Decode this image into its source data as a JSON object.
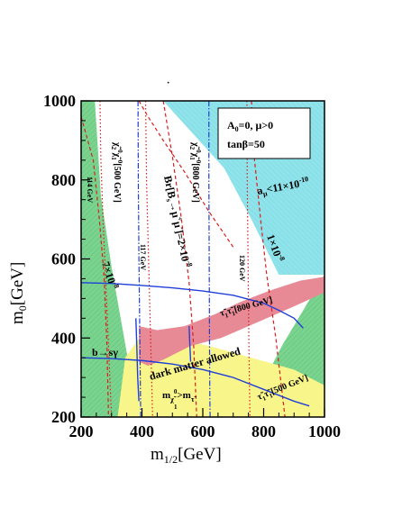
{
  "chart_data": {
    "type": "area",
    "xlabel": "m",
    "xlabel_sub": "1/2",
    "xlabel_unit": "[GeV]",
    "ylabel": "m",
    "ylabel_sub": "0",
    "ylabel_unit": "[GeV]",
    "xlim": [
      200,
      1000
    ],
    "ylim": [
      200,
      1000
    ],
    "xticks": [
      200,
      400,
      600,
      800,
      1000
    ],
    "yticks": [
      200,
      400,
      600,
      800,
      1000
    ],
    "legend_box": {
      "line1": "A",
      "line1_sub": "0",
      "line1_rest": "=0,  μ>0",
      "line2": "tanβ=50"
    },
    "annotations": {
      "amu": "a",
      "amu_sub": "μ",
      "amu_rest": "<11×10",
      "amu_sup": "-10",
      "one_e8": "1×10",
      "one_e8_sup": "-8",
      "seven_e8": "7×10",
      "seven_e8_sup": "-8",
      "br": "Br[B",
      "br_sub": "s",
      "br_rest": "→μ",
      "br_sup1": "+",
      "br_mid": "μ",
      "br_sup2": "-",
      "br_end": "]=2×10",
      "br_sup3": "-8",
      "bsg": "b→sγ",
      "dm": "dark matter allowed",
      "mchi": "m",
      "mchi_sub": "χ̃",
      "mchi_sub2": "1",
      "mchi_sup": "0",
      "mchi_rest": ">m",
      "mchi_sub3": "τ̃",
      "mchi_sub4": "1",
      "chi500": "χ̃",
      "chi500_rest": "[500 GeV]",
      "chi800": "χ̃",
      "chi800_rest": "[800 GeV]",
      "stau800": "τ̃",
      "stau800_rest": "τ̃",
      "stau800_end": "[800 GeV]",
      "stau500": "τ̃",
      "stau500_rest": "τ̃",
      "stau500_end": "[500 GeV]",
      "h114": "114 GeV",
      "h117": "117 GeV",
      "h120": "120 GeV",
      "dot": "·"
    },
    "regions": [
      {
        "name": "muon g-2 favored (cyan)",
        "color": "#8fe3ea",
        "polygon": [
          [
            470,
            1000
          ],
          [
            1000,
            1000
          ],
          [
            1000,
            560
          ],
          [
            850,
            560
          ],
          [
            760,
            700
          ],
          [
            670,
            830
          ]
        ]
      },
      {
        "name": "b to s gamma excluded (green)",
        "color": "#7ad48f",
        "polygon": [
          [
            200,
            1000
          ],
          [
            200,
            200
          ],
          [
            385,
            200
          ],
          [
            360,
            320
          ],
          [
            330,
            450
          ],
          [
            300,
            580
          ],
          [
            265,
            760
          ],
          [
            245,
            1000
          ]
        ]
      },
      {
        "name": "b to s gamma excluded right (green)",
        "color": "#7ad48f",
        "polygon": [
          [
            790,
            200
          ],
          [
            1000,
            200
          ],
          [
            1000,
            560
          ],
          [
            930,
            470
          ],
          [
            860,
            380
          ],
          [
            800,
            290
          ]
        ]
      },
      {
        "name": "stau LSP (yellow)",
        "color": "#f8f58a",
        "polygon": [
          [
            320,
            200
          ],
          [
            1000,
            200
          ],
          [
            1000,
            280
          ],
          [
            900,
            320
          ],
          [
            760,
            350
          ],
          [
            620,
            380
          ],
          [
            500,
            400
          ],
          [
            400,
            410
          ],
          [
            345,
            350
          ]
        ]
      },
      {
        "name": "dark matter allowed (red)",
        "color": "#e88a96",
        "polygon": [
          [
            390,
            430
          ],
          [
            450,
            420
          ],
          [
            540,
            430
          ],
          [
            640,
            460
          ],
          [
            720,
            490
          ],
          [
            820,
            520
          ],
          [
            920,
            545
          ],
          [
            1000,
            555
          ],
          [
            1000,
            515
          ],
          [
            900,
            480
          ],
          [
            780,
            440
          ],
          [
            660,
            400
          ],
          [
            560,
            380
          ],
          [
            470,
            345
          ],
          [
            420,
            330
          ],
          [
            390,
            340
          ]
        ]
      }
    ],
    "series": [
      {
        "name": "a_mu < 11x10^-10",
        "style": "red-dashed",
        "x": [
          390,
          420,
          470,
          540,
          620,
          700
        ],
        "y": [
          1000,
          960,
          900,
          820,
          720,
          630
        ]
      },
      {
        "name": "1x10^-8",
        "style": "red-dashed",
        "x": [
          760,
          770,
          790,
          810,
          840,
          870
        ],
        "y": [
          1000,
          850,
          700,
          560,
          400,
          200
        ]
      },
      {
        "name": "7x10^-8",
        "style": "red-dashed",
        "x": [
          200,
          240,
          260,
          275,
          285,
          290
        ],
        "y": [
          960,
          850,
          700,
          560,
          380,
          200
        ]
      },
      {
        "name": "Br[Bs->mumu]=2x10^-8",
        "style": "red-dashed",
        "x": [
          470,
          500,
          530,
          555,
          570,
          580
        ],
        "y": [
          1000,
          860,
          700,
          540,
          380,
          200
        ]
      },
      {
        "name": "114 GeV",
        "style": "red-dotted",
        "x": [
          262,
          265,
          272,
          280,
          290,
          300
        ],
        "y": [
          1000,
          850,
          700,
          560,
          380,
          200
        ]
      },
      {
        "name": "117 GeV",
        "style": "red-dotted",
        "x": [
          412,
          415,
          420,
          425,
          430,
          435
        ],
        "y": [
          1000,
          800,
          650,
          500,
          350,
          200
        ]
      },
      {
        "name": "120 GeV",
        "style": "red-dotted",
        "x": [
          745,
          746,
          748,
          750,
          752,
          755
        ],
        "y": [
          1000,
          800,
          650,
          500,
          350,
          200
        ]
      },
      {
        "name": "chi chi [500 GeV]",
        "style": "blue-dashdot",
        "x": [
          387,
          388,
          390,
          393,
          395,
          396
        ],
        "y": [
          1000,
          800,
          600,
          400,
          260,
          200
        ]
      },
      {
        "name": "chi chi [800 GeV]",
        "style": "blue-dashdot",
        "x": [
          620,
          620,
          621,
          622,
          623,
          624
        ],
        "y": [
          1000,
          800,
          600,
          400,
          260,
          200
        ]
      },
      {
        "name": "stau stau [800 GeV] / b->s gamma upper",
        "style": "blue-solid",
        "x": [
          200,
          300,
          400,
          500,
          600,
          700,
          800,
          850,
          900,
          930
        ],
        "y": [
          540,
          538,
          533,
          527,
          519,
          508,
          488,
          470,
          450,
          425
        ]
      },
      {
        "name": "stau stau [500 GeV]",
        "style": "blue-solid",
        "x": [
          200,
          300,
          400,
          500,
          600,
          700,
          800,
          900,
          950
        ],
        "y": [
          350,
          348,
          343,
          334,
          320,
          300,
          270,
          240,
          228
        ]
      },
      {
        "name": "b->s gamma",
        "style": "blue-solid",
        "x": [
          380,
          383,
          386,
          390
        ],
        "y": [
          450,
          380,
          300,
          240
        ]
      },
      {
        "name": "b->s gamma 2",
        "style": "blue-solid",
        "x": [
          555,
          557,
          560
        ],
        "y": [
          430,
          390,
          340
        ]
      }
    ]
  }
}
